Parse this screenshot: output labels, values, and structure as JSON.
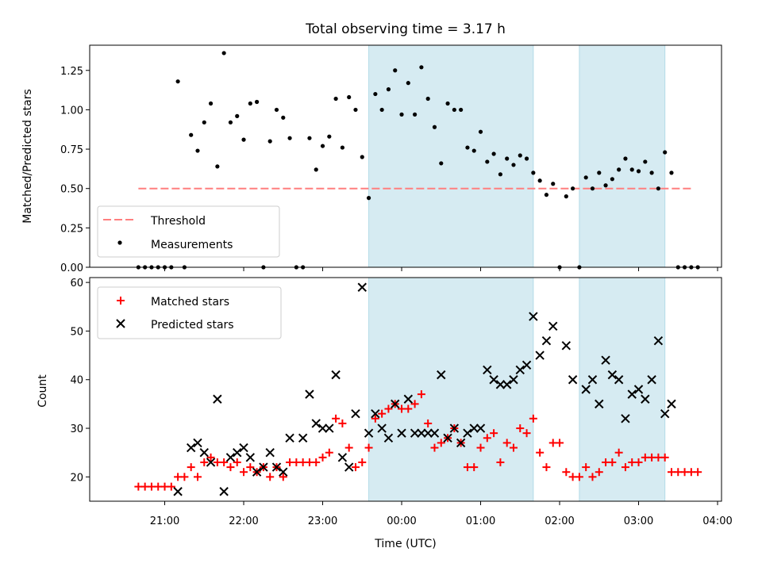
{
  "chart_data": [
    {
      "type": "scatter",
      "title": "Total observing time = 3.17 h",
      "xlabel": "",
      "ylabel": "Matched/Predicted stars",
      "ylim": [
        0,
        1.41
      ],
      "yticks": [
        "0.00",
        "0.25",
        "0.50",
        "0.75",
        "1.00",
        "1.25"
      ],
      "legend": {
        "position": "lower-left",
        "entries": [
          "Threshold",
          "Measurements"
        ]
      },
      "shaded_spans": [
        [
          "23:35",
          "01:40"
        ],
        [
          "02:15",
          "03:20"
        ]
      ],
      "threshold": {
        "name": "Threshold",
        "value": 0.5,
        "x_start": "20:40",
        "x_end": "03:40",
        "color": "#ff7f7f"
      },
      "series": [
        {
          "name": "Measurements",
          "color": "#000000",
          "points": [
            [
              "20:40",
              0
            ],
            [
              "20:45",
              0
            ],
            [
              "20:50",
              0
            ],
            [
              "20:55",
              0
            ],
            [
              "21:00",
              0
            ],
            [
              "21:05",
              0
            ],
            [
              "21:10",
              1.18
            ],
            [
              "21:15",
              0
            ],
            [
              "21:20",
              0.84
            ],
            [
              "21:25",
              0.74
            ],
            [
              "21:30",
              0.92
            ],
            [
              "21:35",
              1.04
            ],
            [
              "21:40",
              0.64
            ],
            [
              "21:45",
              1.36
            ],
            [
              "21:50",
              0.92
            ],
            [
              "21:55",
              0.96
            ],
            [
              "22:00",
              0.81
            ],
            [
              "22:05",
              1.04
            ],
            [
              "22:10",
              1.05
            ],
            [
              "22:15",
              0
            ],
            [
              "22:20",
              0.8
            ],
            [
              "22:25",
              1.0
            ],
            [
              "22:30",
              0.95
            ],
            [
              "22:35",
              0.82
            ],
            [
              "22:40",
              0
            ],
            [
              "22:45",
              0
            ],
            [
              "22:50",
              0.82
            ],
            [
              "22:55",
              0.62
            ],
            [
              "23:00",
              0.77
            ],
            [
              "23:05",
              0.83
            ],
            [
              "23:10",
              1.07
            ],
            [
              "23:15",
              0.76
            ],
            [
              "23:20",
              1.08
            ],
            [
              "23:25",
              1.0
            ],
            [
              "23:30",
              0.7
            ],
            [
              "23:35",
              0.44
            ],
            [
              "23:40",
              1.1
            ],
            [
              "23:45",
              1.0
            ],
            [
              "23:50",
              1.13
            ],
            [
              "23:55",
              1.25
            ],
            [
              "00:00",
              0.97
            ],
            [
              "00:05",
              1.17
            ],
            [
              "00:10",
              0.97
            ],
            [
              "00:15",
              1.27
            ],
            [
              "00:20",
              1.07
            ],
            [
              "00:25",
              0.89
            ],
            [
              "00:30",
              0.66
            ],
            [
              "00:35",
              1.04
            ],
            [
              "00:40",
              1.0
            ],
            [
              "00:45",
              1.0
            ],
            [
              "00:50",
              0.76
            ],
            [
              "00:55",
              0.74
            ],
            [
              "01:00",
              0.86
            ],
            [
              "01:05",
              0.67
            ],
            [
              "01:10",
              0.72
            ],
            [
              "01:15",
              0.59
            ],
            [
              "01:20",
              0.69
            ],
            [
              "01:25",
              0.65
            ],
            [
              "01:30",
              0.71
            ],
            [
              "01:35",
              0.69
            ],
            [
              "01:40",
              0.6
            ],
            [
              "01:45",
              0.55
            ],
            [
              "01:50",
              0.46
            ],
            [
              "01:55",
              0.53
            ],
            [
              "02:00",
              0
            ],
            [
              "02:05",
              0.45
            ],
            [
              "02:10",
              0.5
            ],
            [
              "02:15",
              0
            ],
            [
              "02:20",
              0.57
            ],
            [
              "02:25",
              0.5
            ],
            [
              "02:30",
              0.6
            ],
            [
              "02:35",
              0.52
            ],
            [
              "02:40",
              0.56
            ],
            [
              "02:45",
              0.62
            ],
            [
              "02:50",
              0.69
            ],
            [
              "02:55",
              0.62
            ],
            [
              "03:00",
              0.61
            ],
            [
              "03:05",
              0.67
            ],
            [
              "03:10",
              0.6
            ],
            [
              "03:15",
              0.5
            ],
            [
              "03:20",
              0.73
            ],
            [
              "03:25",
              0.6
            ],
            [
              "03:30",
              0
            ],
            [
              "03:35",
              0
            ],
            [
              "03:40",
              0
            ],
            [
              "03:45",
              0
            ]
          ]
        }
      ]
    },
    {
      "type": "scatter",
      "title": "",
      "xlabel": "Time (UTC)",
      "ylabel": "Count",
      "ylim": [
        15,
        61
      ],
      "yticks": [
        "20",
        "30",
        "40",
        "50",
        "60"
      ],
      "x_range": [
        "20:03",
        "04:03"
      ],
      "xticks": [
        "21:00",
        "22:00",
        "23:00",
        "00:00",
        "01:00",
        "02:00",
        "03:00",
        "04:00"
      ],
      "legend": {
        "position": "upper-left",
        "entries": [
          "Matched stars",
          "Predicted stars"
        ]
      },
      "shaded_spans": [
        [
          "23:35",
          "01:40"
        ],
        [
          "02:15",
          "03:20"
        ]
      ],
      "series": [
        {
          "name": "Matched stars",
          "marker": "plus",
          "color": "#ff0000",
          "points": [
            [
              "20:40",
              18
            ],
            [
              "20:45",
              18
            ],
            [
              "20:50",
              18
            ],
            [
              "20:55",
              18
            ],
            [
              "21:00",
              18
            ],
            [
              "21:05",
              18
            ],
            [
              "21:10",
              20
            ],
            [
              "21:15",
              20
            ],
            [
              "21:20",
              22
            ],
            [
              "21:25",
              20
            ],
            [
              "21:30",
              23
            ],
            [
              "21:35",
              24
            ],
            [
              "21:40",
              23
            ],
            [
              "21:45",
              23
            ],
            [
              "21:50",
              22
            ],
            [
              "21:55",
              23
            ],
            [
              "22:00",
              21
            ],
            [
              "22:05",
              22
            ],
            [
              "22:10",
              21
            ],
            [
              "22:15",
              22
            ],
            [
              "22:20",
              20
            ],
            [
              "22:25",
              22
            ],
            [
              "22:30",
              20
            ],
            [
              "22:35",
              23
            ],
            [
              "22:40",
              23
            ],
            [
              "22:45",
              23
            ],
            [
              "22:50",
              23
            ],
            [
              "22:55",
              23
            ],
            [
              "23:00",
              24
            ],
            [
              "23:05",
              25
            ],
            [
              "23:10",
              32
            ],
            [
              "23:15",
              31
            ],
            [
              "23:20",
              26
            ],
            [
              "23:25",
              22
            ],
            [
              "23:30",
              23
            ],
            [
              "23:35",
              26
            ],
            [
              "23:40",
              32
            ],
            [
              "23:45",
              33
            ],
            [
              "23:50",
              34
            ],
            [
              "23:55",
              35
            ],
            [
              "00:00",
              34
            ],
            [
              "00:05",
              34
            ],
            [
              "00:10",
              35
            ],
            [
              "00:15",
              37
            ],
            [
              "00:20",
              31
            ],
            [
              "00:25",
              26
            ],
            [
              "00:30",
              27
            ],
            [
              "00:35",
              28
            ],
            [
              "00:40",
              30
            ],
            [
              "00:45",
              27
            ],
            [
              "00:50",
              22
            ],
            [
              "00:55",
              22
            ],
            [
              "01:00",
              26
            ],
            [
              "01:05",
              28
            ],
            [
              "01:10",
              29
            ],
            [
              "01:15",
              23
            ],
            [
              "01:20",
              27
            ],
            [
              "01:25",
              26
            ],
            [
              "01:30",
              30
            ],
            [
              "01:35",
              29
            ],
            [
              "01:40",
              32
            ],
            [
              "01:45",
              25
            ],
            [
              "01:50",
              22
            ],
            [
              "01:55",
              27
            ],
            [
              "02:00",
              27
            ],
            [
              "02:05",
              21
            ],
            [
              "02:10",
              20
            ],
            [
              "02:15",
              20
            ],
            [
              "02:20",
              22
            ],
            [
              "02:25",
              20
            ],
            [
              "02:30",
              21
            ],
            [
              "02:35",
              23
            ],
            [
              "02:40",
              23
            ],
            [
              "02:45",
              25
            ],
            [
              "02:50",
              22
            ],
            [
              "02:55",
              23
            ],
            [
              "03:00",
              23
            ],
            [
              "03:05",
              24
            ],
            [
              "03:10",
              24
            ],
            [
              "03:15",
              24
            ],
            [
              "03:20",
              24
            ],
            [
              "03:25",
              21
            ],
            [
              "03:30",
              21
            ],
            [
              "03:35",
              21
            ],
            [
              "03:40",
              21
            ],
            [
              "03:45",
              21
            ]
          ]
        },
        {
          "name": "Predicted stars",
          "marker": "x",
          "color": "#000000",
          "points": [
            [
              "21:10",
              17
            ],
            [
              "21:20",
              26
            ],
            [
              "21:25",
              27
            ],
            [
              "21:30",
              25
            ],
            [
              "21:35",
              23
            ],
            [
              "21:40",
              36
            ],
            [
              "21:45",
              17
            ],
            [
              "21:50",
              24
            ],
            [
              "21:55",
              25
            ],
            [
              "22:00",
              26
            ],
            [
              "22:05",
              24
            ],
            [
              "22:10",
              21
            ],
            [
              "22:15",
              22
            ],
            [
              "22:20",
              25
            ],
            [
              "22:25",
              22
            ],
            [
              "22:30",
              21
            ],
            [
              "22:35",
              28
            ],
            [
              "22:45",
              28
            ],
            [
              "22:50",
              37
            ],
            [
              "22:55",
              31
            ],
            [
              "23:00",
              30
            ],
            [
              "23:05",
              30
            ],
            [
              "23:10",
              41
            ],
            [
              "23:15",
              24
            ],
            [
              "23:20",
              22
            ],
            [
              "23:25",
              33
            ],
            [
              "23:30",
              59
            ],
            [
              "23:35",
              29
            ],
            [
              "23:40",
              33
            ],
            [
              "23:45",
              30
            ],
            [
              "23:50",
              28
            ],
            [
              "23:55",
              35
            ],
            [
              "00:00",
              29
            ],
            [
              "00:05",
              36
            ],
            [
              "00:10",
              29
            ],
            [
              "00:15",
              29
            ],
            [
              "00:20",
              29
            ],
            [
              "00:25",
              29
            ],
            [
              "00:30",
              41
            ],
            [
              "00:35",
              28
            ],
            [
              "00:40",
              30
            ],
            [
              "00:45",
              27
            ],
            [
              "00:50",
              29
            ],
            [
              "00:55",
              30
            ],
            [
              "01:00",
              30
            ],
            [
              "01:05",
              42
            ],
            [
              "01:10",
              40
            ],
            [
              "01:15",
              39
            ],
            [
              "01:20",
              39
            ],
            [
              "01:25",
              40
            ],
            [
              "01:30",
              42
            ],
            [
              "01:35",
              43
            ],
            [
              "01:40",
              53
            ],
            [
              "01:45",
              45
            ],
            [
              "01:50",
              48
            ],
            [
              "01:55",
              51
            ],
            [
              "02:05",
              47
            ],
            [
              "02:10",
              40
            ],
            [
              "02:20",
              38
            ],
            [
              "02:25",
              40
            ],
            [
              "02:30",
              35
            ],
            [
              "02:35",
              44
            ],
            [
              "02:40",
              41
            ],
            [
              "02:45",
              40
            ],
            [
              "02:50",
              32
            ],
            [
              "02:55",
              37
            ],
            [
              "03:00",
              38
            ],
            [
              "03:05",
              36
            ],
            [
              "03:10",
              40
            ],
            [
              "03:15",
              48
            ],
            [
              "03:20",
              33
            ],
            [
              "03:25",
              35
            ]
          ]
        }
      ]
    }
  ]
}
